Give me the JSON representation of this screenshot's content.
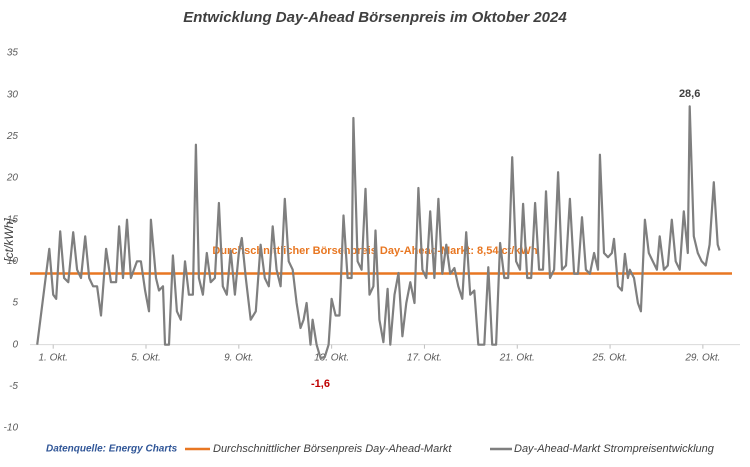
{
  "chart_data": {
    "type": "line",
    "title": "Entwicklung Day-Ahead Börsenpreis im Oktober 2024",
    "y_label": "[ct/kWh]",
    "source": "Datenquelle: Energy Charts",
    "x": [
      0.31,
      0.83,
      1,
      1.13,
      1.3,
      1.47,
      1.65,
      1.86,
      2.03,
      2.2,
      2.38,
      2.55,
      2.72,
      2.89,
      3.06,
      3.28,
      3.49,
      3.71,
      3.84,
      4.01,
      4.18,
      4.35,
      4.61,
      4.78,
      4.96,
      5.13,
      5.21,
      5.43,
      5.56,
      5.73,
      5.82,
      5.99,
      6.16,
      6.33,
      6.5,
      6.68,
      6.85,
      7.02,
      7.15,
      7.28,
      7.45,
      7.62,
      7.79,
      7.97,
      8.14,
      8.31,
      8.48,
      8.65,
      8.83,
      9.0,
      9.13,
      9.3,
      9.51,
      9.73,
      9.94,
      10.12,
      10.29,
      10.46,
      10.63,
      10.8,
      10.98,
      11.15,
      11.32,
      11.49,
      11.66,
      11.79,
      11.92,
      12.09,
      12.18,
      12.35,
      12.52,
      12.7,
      12.87,
      13.0,
      13.17,
      13.34,
      13.51,
      13.69,
      13.86,
      13.94,
      14.12,
      14.29,
      14.46,
      14.63,
      14.8,
      14.89,
      15.06,
      15.23,
      15.41,
      15.53,
      15.71,
      15.88,
      16.05,
      16.22,
      16.39,
      16.57,
      16.74,
      16.91,
      17.08,
      17.25,
      17.43,
      17.6,
      17.77,
      17.94,
      18.11,
      18.29,
      18.46,
      18.63,
      18.8,
      18.97,
      19.15,
      19.32,
      19.58,
      19.75,
      19.92,
      20.09,
      20.26,
      20.44,
      20.61,
      20.78,
      20.95,
      21.12,
      21.25,
      21.43,
      21.6,
      21.77,
      21.94,
      22.11,
      22.24,
      22.41,
      22.59,
      22.76,
      22.93,
      23.1,
      23.27,
      23.45,
      23.62,
      23.79,
      23.96,
      24.13,
      24.31,
      24.48,
      24.56,
      24.74,
      24.91,
      25.08,
      25.17,
      25.34,
      25.51,
      25.64,
      25.77,
      25.85,
      26.03,
      26.2,
      26.33,
      26.5,
      26.67,
      26.84,
      27.02,
      27.14,
      27.32,
      27.49,
      27.66,
      27.83,
      28.0,
      28.18,
      28.35,
      28.43,
      28.61,
      28.78,
      28.95,
      29.12,
      29.29,
      29.47,
      29.64,
      29.72
    ],
    "series": [
      {
        "name": "Day-Ahead-Markt Strompreisentwicklung",
        "color": "#7f7f7f",
        "values": [
          0,
          11.5,
          6,
          5.5,
          13.6,
          8,
          7.5,
          13.5,
          9,
          8,
          13,
          8,
          7,
          7,
          3.5,
          11.5,
          7.5,
          7.5,
          14.2,
          8,
          15,
          8,
          10,
          10,
          6.5,
          4,
          15,
          8,
          6.5,
          7,
          0,
          0,
          10.7,
          4,
          3,
          10,
          6,
          6,
          24,
          8,
          6,
          11,
          7.5,
          8,
          17,
          7,
          6,
          11.3,
          6,
          11,
          12.8,
          8,
          3,
          4,
          12,
          8,
          7,
          14.2,
          9,
          7,
          17.5,
          10,
          9,
          5,
          2,
          3,
          5,
          0,
          3,
          0,
          -1.6,
          -1.5,
          0,
          5.5,
          3.5,
          3.5,
          15.5,
          8,
          8,
          27.2,
          10,
          9,
          18.7,
          6,
          7,
          13.7,
          3,
          0.3,
          6.7,
          0,
          6,
          8.6,
          1,
          5,
          7.5,
          5,
          18.8,
          9,
          8,
          16,
          8,
          17.5,
          8.5,
          12,
          8.5,
          9.2,
          7,
          5.5,
          13.5,
          6,
          6.5,
          0,
          0,
          9.3,
          0,
          0,
          12.2,
          8,
          8,
          22.5,
          10,
          9,
          16.9,
          8,
          8,
          17,
          9,
          9,
          18.4,
          8,
          9,
          20.7,
          9,
          9.5,
          17.5,
          8.5,
          8.5,
          15.3,
          9,
          8.5,
          11,
          9,
          22.8,
          11,
          10.5,
          11,
          12.7,
          7,
          6.5,
          10.9,
          8,
          9,
          8,
          5,
          4,
          15,
          11,
          10,
          9,
          13,
          9,
          9.5,
          15,
          10,
          9,
          16,
          11,
          28.6,
          13,
          11,
          10,
          9.5,
          12,
          19.5,
          12,
          11.3
        ]
      }
    ],
    "average": {
      "name": "Durchschnittlicher Börsenpreis Day-Ahead-Markt",
      "label": "Durchschnittlicher Börsenpreis Day-Ahead-Markt: 8,54 ct/kWh",
      "value": 8.54,
      "color": "#e87722"
    },
    "annotations": [
      {
        "x": 28.43,
        "y": 28.6,
        "label": "28,6",
        "color": "#404040"
      },
      {
        "x": 12.52,
        "y": -1.6,
        "label": "-1,6",
        "color": "#c00000"
      }
    ],
    "xlim": [
      0,
      30.6
    ],
    "xticks": [
      {
        "value": 1,
        "label": "1. Okt."
      },
      {
        "value": 5,
        "label": "5. Okt."
      },
      {
        "value": 9,
        "label": "9. Okt."
      },
      {
        "value": 13,
        "label": "13. Okt."
      },
      {
        "value": 17,
        "label": "17. Okt."
      },
      {
        "value": 21,
        "label": "21. Okt."
      },
      {
        "value": 25,
        "label": "25. Okt."
      },
      {
        "value": 29,
        "label": "29. Okt."
      }
    ],
    "ylim": [
      -10,
      35
    ],
    "yticks": [
      -10,
      -5,
      0,
      5,
      10,
      15,
      20,
      25,
      30,
      35
    ],
    "grid": false
  }
}
